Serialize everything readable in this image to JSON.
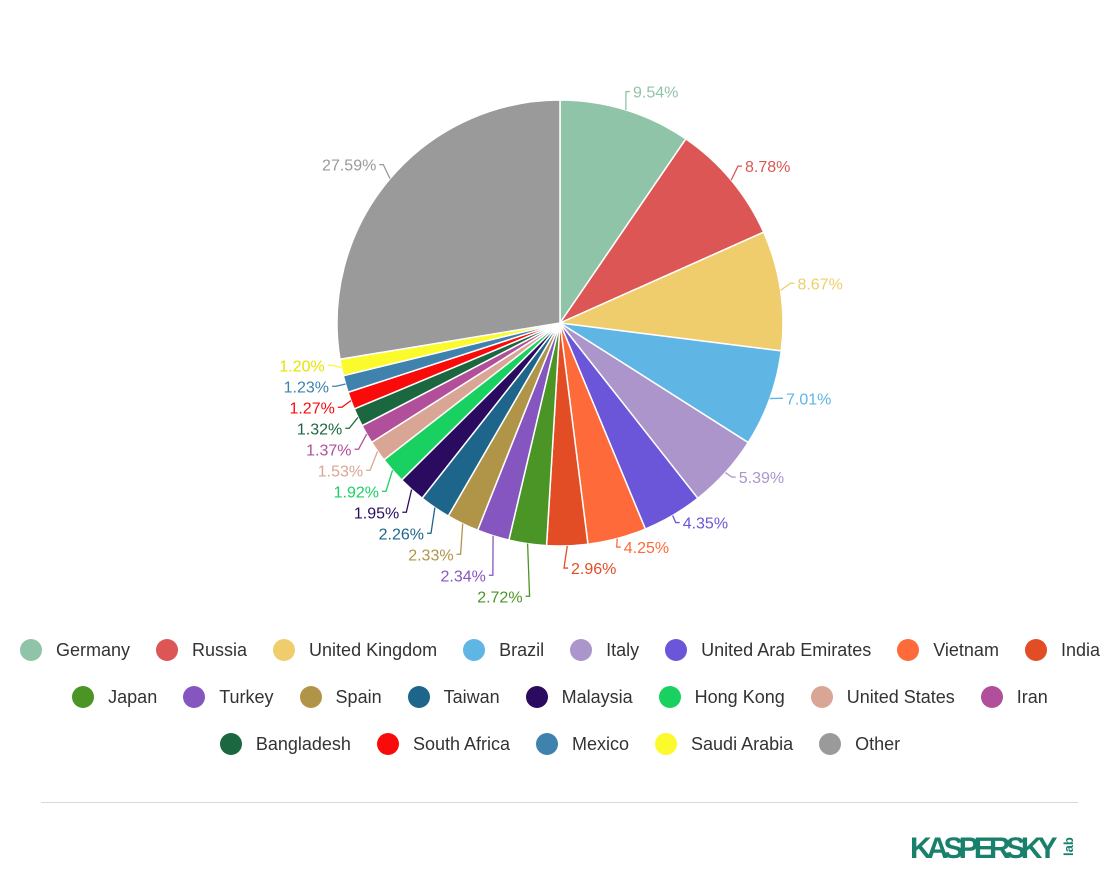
{
  "chart_data": {
    "type": "pie",
    "slices": [
      {
        "name": "Germany",
        "value": 9.54,
        "label": "9.54%",
        "color": "#8fc4a8"
      },
      {
        "name": "Russia",
        "value": 8.78,
        "label": "8.78%",
        "color": "#dc5656"
      },
      {
        "name": "United Kingdom",
        "value": 8.67,
        "label": "8.67%",
        "color": "#efcd6d"
      },
      {
        "name": "Brazil",
        "value": 7.01,
        "label": "7.01%",
        "color": "#5fb6e4"
      },
      {
        "name": "Italy",
        "value": 5.39,
        "label": "5.39%",
        "color": "#ab95ca"
      },
      {
        "name": "United Arab Emirates",
        "value": 4.35,
        "label": "4.35%",
        "color": "#6b55d8"
      },
      {
        "name": "Vietnam",
        "value": 4.25,
        "label": "4.25%",
        "color": "#ff6a3a"
      },
      {
        "name": "India",
        "value": 2.96,
        "label": "2.96%",
        "color": "#e34d26"
      },
      {
        "name": "Japan",
        "value": 2.72,
        "label": "2.72%",
        "color": "#4a9526"
      },
      {
        "name": "Turkey",
        "value": 2.34,
        "label": "2.34%",
        "color": "#8656c0"
      },
      {
        "name": "Spain",
        "value": 2.33,
        "label": "2.33%",
        "color": "#b09549"
      },
      {
        "name": "Taiwan",
        "value": 2.26,
        "label": "2.26%",
        "color": "#1e658c"
      },
      {
        "name": "Malaysia",
        "value": 1.95,
        "label": "1.95%",
        "color": "#2b0b5f"
      },
      {
        "name": "Hong Kong",
        "value": 1.92,
        "label": "1.92%",
        "color": "#19d161"
      },
      {
        "name": "United States",
        "value": 1.53,
        "label": "1.53%",
        "color": "#d9a594"
      },
      {
        "name": "Iran",
        "value": 1.37,
        "label": "1.37%",
        "color": "#b24f9a"
      },
      {
        "name": "Bangladesh",
        "value": 1.32,
        "label": "1.32%",
        "color": "#1b6840"
      },
      {
        "name": "South Africa",
        "value": 1.27,
        "label": "1.27%",
        "color": "#fa0b0b"
      },
      {
        "name": "Mexico",
        "value": 1.23,
        "label": "1.23%",
        "color": "#3e82ad"
      },
      {
        "name": "Saudi Arabia",
        "value": 1.2,
        "label": "1.20%",
        "color": "#fbfa2d"
      },
      {
        "name": "Other",
        "value": 27.59,
        "label": "27.59%",
        "color": "#9a9a9a"
      }
    ],
    "legend_placement": "bottom"
  },
  "legend_rows": [
    [
      "Germany",
      "Russia",
      "United Kingdom",
      "Brazil",
      "Italy",
      "United Arab Emirates",
      "Vietnam",
      "India"
    ],
    [
      "Japan",
      "Turkey",
      "Spain",
      "Taiwan",
      "Malaysia",
      "Hong Kong",
      "United States",
      "Iran"
    ],
    [
      "Bangladesh",
      "South Africa",
      "Mexico",
      "Saudi Arabia",
      "Other"
    ]
  ],
  "logo": {
    "name": "kaspersky-logo",
    "text": "KASPERSKY",
    "sub": "lab",
    "color": "#19806b"
  }
}
